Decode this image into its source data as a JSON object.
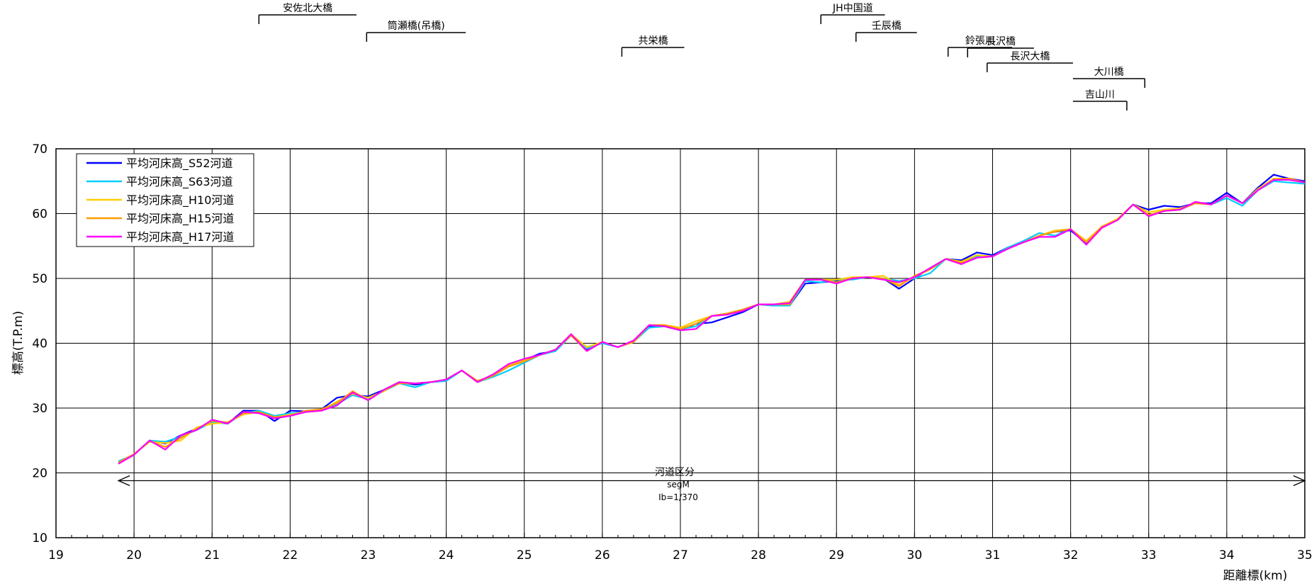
{
  "chart_data": {
    "type": "line",
    "title": "",
    "xlabel": "距離標(km)",
    "ylabel": "標高(T.P.m)",
    "xlim": [
      19,
      35
    ],
    "ylim": [
      10,
      70
    ],
    "x_ticks": [
      "19",
      "20",
      "21",
      "22",
      "23",
      "24",
      "25",
      "26",
      "27",
      "28",
      "29",
      "30",
      "31",
      "32",
      "33",
      "34",
      "35"
    ],
    "y_ticks": [
      "10",
      "20",
      "30",
      "40",
      "50",
      "60",
      "70"
    ],
    "grid": true,
    "legend_position": "top-left",
    "x": [
      19.8,
      20.0,
      20.2,
      20.4,
      20.6,
      20.8,
      21.0,
      21.2,
      21.4,
      21.6,
      21.8,
      22.0,
      22.2,
      22.4,
      22.6,
      22.8,
      23.0,
      23.2,
      23.4,
      23.6,
      23.8,
      24.0,
      24.2,
      24.4,
      24.6,
      24.8,
      25.0,
      25.2,
      25.4,
      25.6,
      25.8,
      26.0,
      26.2,
      26.4,
      26.6,
      26.8,
      27.0,
      27.2,
      27.4,
      27.6,
      27.8,
      28.0,
      28.2,
      28.4,
      28.6,
      28.8,
      29.0,
      29.2,
      29.4,
      29.6,
      29.8,
      30.0,
      30.2,
      30.4,
      30.6,
      30.8,
      31.0,
      31.2,
      31.4,
      31.6,
      31.8,
      32.0,
      32.2,
      32.4,
      32.6,
      32.8,
      33.0,
      33.2,
      33.4,
      33.6,
      33.8,
      34.0,
      34.2,
      34.4,
      34.6,
      34.8,
      35.0
    ],
    "series": [
      {
        "name": "平均河床高_S52河道",
        "color": "#0000ff",
        "values": [
          21.5,
          22.8,
          25.0,
          24.5,
          25.8,
          26.8,
          28.0,
          27.6,
          29.6,
          29.6,
          28.0,
          29.6,
          29.5,
          29.8,
          31.6,
          32.0,
          31.8,
          32.8,
          34.0,
          33.6,
          34.0,
          34.2,
          35.8,
          34.0,
          35.0,
          36.6,
          37.4,
          38.4,
          38.8,
          41.2,
          39.0,
          40.2,
          39.4,
          40.4,
          42.6,
          42.6,
          42.0,
          43.0,
          43.2,
          44.0,
          44.8,
          46.0,
          45.8,
          45.8,
          49.2,
          49.4,
          49.6,
          50.0,
          50.2,
          50.0,
          48.4,
          50.0,
          51.6,
          53.0,
          52.8,
          54.0,
          53.6,
          54.8,
          55.6,
          56.6,
          57.2,
          57.4,
          55.4,
          58.0,
          59.0,
          61.4,
          60.6,
          61.2,
          61.0,
          61.6,
          61.6,
          63.2,
          61.6,
          64.0,
          66.0,
          65.4,
          65.0
        ]
      },
      {
        "name": "平均河床高_S63河道",
        "color": "#00ccff",
        "values": [
          21.8,
          22.8,
          25.0,
          24.8,
          25.6,
          26.6,
          27.8,
          27.6,
          29.2,
          29.6,
          28.8,
          29.2,
          29.4,
          29.6,
          30.6,
          32.0,
          31.4,
          32.6,
          33.8,
          33.2,
          34.0,
          34.2,
          35.8,
          34.0,
          34.8,
          35.8,
          37.0,
          38.2,
          38.8,
          41.2,
          39.2,
          40.0,
          39.4,
          40.2,
          42.4,
          42.6,
          42.2,
          42.6,
          44.2,
          44.6,
          45.2,
          46.0,
          45.8,
          45.8,
          49.6,
          49.4,
          49.8,
          49.8,
          50.2,
          50.0,
          49.6,
          50.0,
          50.8,
          53.0,
          52.4,
          53.4,
          53.4,
          54.8,
          55.8,
          57.0,
          56.6,
          57.6,
          55.6,
          58.0,
          59.0,
          61.4,
          59.8,
          60.4,
          60.6,
          61.6,
          61.4,
          62.4,
          61.2,
          63.6,
          65.0,
          64.8,
          64.6
        ]
      },
      {
        "name": "平均河床高_H10河道",
        "color": "#ffcc00",
        "values": [
          21.6,
          22.9,
          24.8,
          24.6,
          25.0,
          27.0,
          27.6,
          27.8,
          29.0,
          29.4,
          28.6,
          29.0,
          29.4,
          29.6,
          31.0,
          32.2,
          31.6,
          32.6,
          34.0,
          33.8,
          34.0,
          34.4,
          35.8,
          34.0,
          35.0,
          36.6,
          37.4,
          38.2,
          39.0,
          41.4,
          39.4,
          40.2,
          39.4,
          40.2,
          42.8,
          42.8,
          42.4,
          43.4,
          44.2,
          44.6,
          45.2,
          46.0,
          46.0,
          46.4,
          49.8,
          49.8,
          49.8,
          50.2,
          50.2,
          50.4,
          49.0,
          50.2,
          51.4,
          53.0,
          52.6,
          53.6,
          53.4,
          54.6,
          55.6,
          56.6,
          57.4,
          57.6,
          55.8,
          58.0,
          59.2,
          61.4,
          60.2,
          60.6,
          60.8,
          61.6,
          61.4,
          62.8,
          61.6,
          63.8,
          65.4,
          65.4,
          64.8
        ]
      },
      {
        "name": "平均河床高_H15河道",
        "color": "#ff9900",
        "values": [
          21.6,
          22.9,
          24.9,
          24.0,
          25.4,
          26.8,
          28.0,
          27.8,
          29.2,
          29.4,
          28.6,
          28.8,
          29.6,
          29.8,
          30.8,
          32.6,
          31.2,
          32.8,
          33.8,
          33.8,
          34.0,
          34.4,
          35.8,
          34.2,
          35.0,
          36.4,
          37.2,
          38.2,
          39.0,
          41.2,
          38.8,
          40.2,
          39.4,
          40.2,
          42.8,
          42.8,
          42.2,
          43.0,
          44.2,
          44.6,
          45.2,
          46.0,
          46.0,
          46.0,
          49.8,
          49.8,
          49.4,
          50.0,
          50.2,
          50.0,
          48.8,
          50.4,
          51.4,
          53.0,
          52.4,
          53.2,
          53.4,
          54.6,
          55.6,
          56.6,
          57.2,
          57.6,
          55.6,
          58.0,
          59.0,
          61.4,
          59.8,
          60.4,
          60.6,
          61.6,
          61.4,
          62.8,
          61.6,
          63.6,
          65.2,
          65.4,
          64.8
        ]
      },
      {
        "name": "平均河床高_H17河道",
        "color": "#ff00ff",
        "values": [
          21.4,
          22.8,
          25.0,
          23.6,
          25.8,
          26.6,
          28.2,
          27.6,
          29.4,
          29.2,
          28.4,
          28.8,
          29.4,
          29.6,
          30.4,
          32.4,
          31.2,
          32.8,
          34.0,
          33.8,
          34.0,
          34.4,
          35.8,
          34.0,
          35.2,
          36.8,
          37.6,
          38.2,
          39.0,
          41.4,
          38.8,
          40.2,
          39.4,
          40.4,
          42.8,
          42.6,
          42.0,
          42.2,
          44.2,
          44.4,
          45.0,
          46.0,
          46.0,
          46.2,
          49.8,
          49.8,
          49.2,
          50.0,
          50.2,
          49.8,
          49.4,
          50.2,
          51.6,
          53.0,
          52.2,
          53.2,
          53.4,
          54.6,
          55.6,
          56.4,
          56.4,
          57.6,
          55.2,
          57.8,
          59.0,
          61.4,
          59.6,
          60.4,
          60.6,
          61.8,
          61.4,
          62.8,
          61.6,
          63.6,
          65.2,
          65.2,
          64.8
        ]
      }
    ],
    "bridges": [
      {
        "label": "安佐北大橋",
        "km": 21.6,
        "tier": 0,
        "x1": 21.6,
        "x2": 22.85
      },
      {
        "label": "筒瀬橋(吊橋)",
        "km": 22.98,
        "tier": 1,
        "x1": 22.98,
        "x2": 24.25
      },
      {
        "label": "共栄橋",
        "km": 26.25,
        "tier": 2,
        "x1": 26.25,
        "x2": 27.05
      },
      {
        "label": "JH中国道",
        "km": 28.8,
        "tier": 0,
        "x1": 28.8,
        "x2": 29.62
      },
      {
        "label": "壬辰橋",
        "km": 29.25,
        "tier": 1,
        "x1": 29.25,
        "x2": 30.03
      },
      {
        "label": "鈴張川",
        "km": 30.43,
        "tier": 2,
        "x1": 30.43,
        "x2": 31.25
      },
      {
        "label": "長沢橋",
        "km": 30.68,
        "tier": 3,
        "x1": 30.68,
        "x2": 31.53
      },
      {
        "label": "長沢大橋",
        "km": 30.93,
        "tier": 4,
        "x1": 30.93,
        "x2": 32.03
      },
      {
        "label": "大川橋",
        "km": 32.95,
        "tier": 5,
        "x1": 32.03,
        "x2": 32.95
      },
      {
        "label": "吉山川",
        "km": 32.72,
        "tier": 6,
        "x1": 32.03,
        "x2": 32.72
      }
    ],
    "segment": {
      "title": "河道区分",
      "name": "segM",
      "gradient": "Ib=1/370",
      "x_start": 19.8,
      "x_end": 35.0,
      "y": 18.8
    }
  }
}
